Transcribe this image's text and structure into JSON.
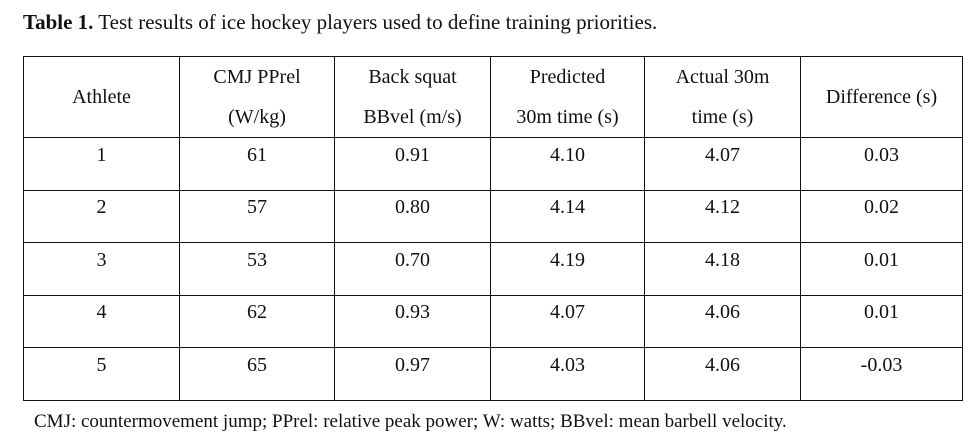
{
  "caption": {
    "label": "Table 1.",
    "text": " Test results of ice hockey players used to define training priorities."
  },
  "table": {
    "headers": [
      [
        "Athlete"
      ],
      [
        "CMJ PPrel",
        "(W/kg)"
      ],
      [
        "Back squat",
        "BBvel (m/s)"
      ],
      [
        "Predicted",
        "30m time (s)"
      ],
      [
        "Actual 30m",
        "time (s)"
      ],
      [
        "Difference (s)"
      ]
    ],
    "rows": [
      [
        "1",
        "61",
        "0.91",
        "4.10",
        "4.07",
        "0.03"
      ],
      [
        "2",
        "57",
        "0.80",
        "4.14",
        "4.12",
        "0.02"
      ],
      [
        "3",
        "53",
        "0.70",
        "4.19",
        "4.18",
        "0.01"
      ],
      [
        "4",
        "62",
        "0.93",
        "4.07",
        "4.06",
        "0.01"
      ],
      [
        "5",
        "65",
        "0.97",
        "4.03",
        "4.06",
        "-0.03"
      ]
    ]
  },
  "footnote": "CMJ: countermovement jump; PPrel: relative peak power; W: watts; BBvel: mean barbell velocity."
}
